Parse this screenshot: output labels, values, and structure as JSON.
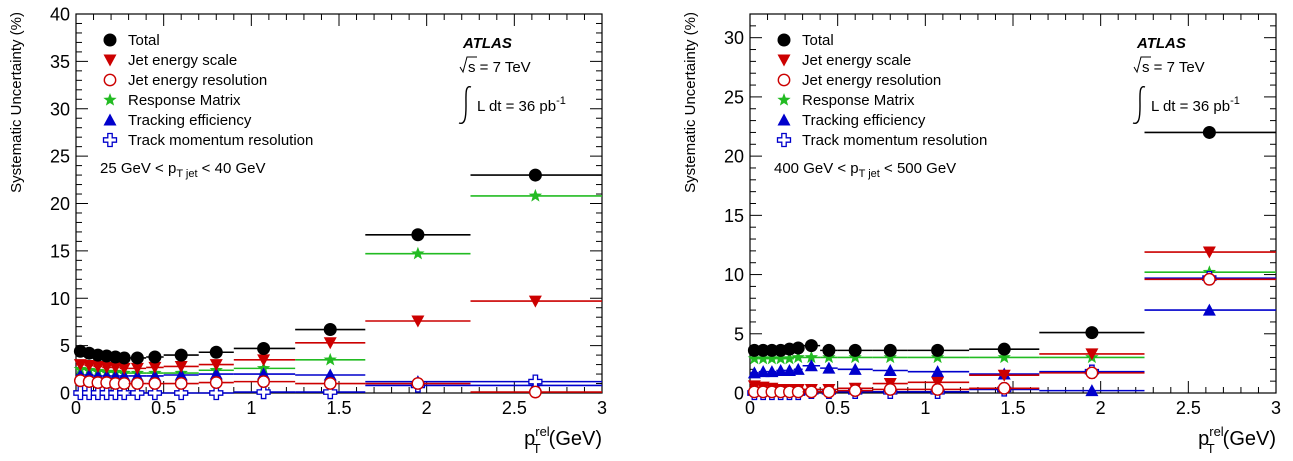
{
  "chart_data": [
    {
      "type": "scatter",
      "ylabel": "Systematic Uncertainty (%)",
      "xlabel": "p",
      "xlabel_sup": "rel",
      "xlabel_sub": "T",
      "xlabel_unit": "(GeV)",
      "xlim": [
        0,
        3
      ],
      "ylim": [
        0,
        40
      ],
      "xticks": [
        "0",
        "0.5",
        "1",
        "1.5",
        "2",
        "2.5",
        "3"
      ],
      "yticks": [
        "0",
        "5",
        "10",
        "15",
        "20",
        "25",
        "30",
        "35",
        "40"
      ],
      "range_label": {
        "prefix": "25 GeV < p",
        "sub": "T jet",
        "suffix": " < 40 GeV"
      },
      "atlas_label": "ATLAS",
      "sqrt_s": {
        "root": "s",
        "rest": " = 7 TeV"
      },
      "lumi": {
        "text": "L dt = 36 pb",
        "sup": "-1"
      },
      "bin_edges": [
        0,
        0.05,
        0.1,
        0.15,
        0.2,
        0.25,
        0.3,
        0.4,
        0.5,
        0.7,
        0.9,
        1.25,
        1.65,
        2.25,
        3.0
      ],
      "centers": [
        0.025,
        0.075,
        0.125,
        0.175,
        0.225,
        0.275,
        0.35,
        0.45,
        0.6,
        0.8,
        1.07,
        1.45,
        1.95,
        2.62
      ],
      "series": [
        {
          "name": "Total",
          "marker": "circle",
          "color": "#000000",
          "values": [
            4.4,
            4.2,
            4.0,
            3.9,
            3.8,
            3.7,
            3.7,
            3.8,
            4.0,
            4.3,
            4.7,
            6.7,
            16.7,
            23.0
          ]
        },
        {
          "name": "Jet energy scale",
          "marker": "tri-down",
          "color": "#cc0000",
          "values": [
            3.0,
            2.9,
            2.8,
            2.7,
            2.7,
            2.6,
            2.6,
            2.7,
            2.8,
            3.0,
            3.5,
            5.3,
            7.6,
            9.7
          ]
        },
        {
          "name": "Jet energy resolution",
          "marker": "circle-open",
          "color": "#cc0000",
          "values": [
            1.3,
            1.2,
            1.1,
            1.1,
            1.0,
            1.0,
            1.0,
            1.0,
            1.0,
            1.1,
            1.2,
            1.0,
            1.0,
            0.1
          ]
        },
        {
          "name": "Response Matrix",
          "marker": "star",
          "color": "#22bb22",
          "values": [
            2.5,
            2.4,
            2.3,
            2.2,
            2.2,
            2.1,
            2.1,
            2.1,
            2.1,
            2.4,
            2.6,
            3.5,
            14.7,
            20.8
          ]
        },
        {
          "name": "Tracking efficiency",
          "marker": "tri-up",
          "color": "#0000cc",
          "values": [
            1.9,
            1.9,
            1.8,
            1.8,
            1.8,
            1.8,
            1.8,
            1.8,
            1.9,
            2.0,
            2.0,
            1.9,
            1.2,
            0.8
          ]
        },
        {
          "name": "Track momentum resolution",
          "marker": "cross-open",
          "color": "#0000cc",
          "values": [
            0.0,
            0.0,
            0.0,
            0.0,
            0.0,
            0.0,
            0.0,
            0.0,
            0.0,
            0.0,
            0.1,
            0.1,
            0.8,
            1.2
          ]
        }
      ]
    },
    {
      "type": "scatter",
      "ylabel": "Systematic Uncertainty (%)",
      "xlabel": "p",
      "xlabel_sup": "rel",
      "xlabel_sub": "T",
      "xlabel_unit": "(GeV)",
      "xlim": [
        0,
        3
      ],
      "ylim": [
        0,
        32
      ],
      "xticks": [
        "0",
        "0.5",
        "1",
        "1.5",
        "2",
        "2.5",
        "3"
      ],
      "yticks": [
        "0",
        "5",
        "10",
        "15",
        "20",
        "25",
        "30"
      ],
      "range_label": {
        "prefix": "400 GeV < p",
        "sub": "T jet",
        "suffix": " < 500 GeV"
      },
      "atlas_label": "ATLAS",
      "sqrt_s": {
        "root": "s",
        "rest": " = 7 TeV"
      },
      "lumi": {
        "text": "L dt = 36 pb",
        "sup": "-1"
      },
      "bin_edges": [
        0,
        0.05,
        0.1,
        0.15,
        0.2,
        0.25,
        0.3,
        0.4,
        0.5,
        0.7,
        0.9,
        1.25,
        1.65,
        2.25,
        3.0
      ],
      "centers": [
        0.025,
        0.075,
        0.125,
        0.175,
        0.225,
        0.275,
        0.35,
        0.45,
        0.6,
        0.8,
        1.07,
        1.45,
        1.95,
        2.62
      ],
      "series": [
        {
          "name": "Total",
          "marker": "circle",
          "color": "#000000",
          "values": [
            3.6,
            3.6,
            3.6,
            3.6,
            3.7,
            3.8,
            4.0,
            3.6,
            3.6,
            3.6,
            3.6,
            3.7,
            5.1,
            22.0
          ]
        },
        {
          "name": "Jet energy scale",
          "marker": "tri-down",
          "color": "#cc0000",
          "values": [
            0.6,
            0.5,
            0.4,
            0.3,
            0.3,
            0.3,
            0.3,
            0.3,
            0.4,
            0.8,
            0.9,
            1.5,
            3.3,
            11.9
          ]
        },
        {
          "name": "Jet energy resolution",
          "marker": "circle-open",
          "color": "#cc0000",
          "values": [
            0.1,
            0.1,
            0.1,
            0.1,
            0.1,
            0.1,
            0.1,
            0.1,
            0.2,
            0.3,
            0.3,
            0.4,
            1.7,
            9.6
          ]
        },
        {
          "name": "Response Matrix",
          "marker": "star",
          "color": "#22bb22",
          "values": [
            2.9,
            2.9,
            2.9,
            2.9,
            2.9,
            3.0,
            3.0,
            3.0,
            3.0,
            3.0,
            3.0,
            3.0,
            3.0,
            10.2
          ]
        },
        {
          "name": "Tracking efficiency",
          "marker": "tri-up",
          "color": "#0000cc",
          "values": [
            1.7,
            1.8,
            1.8,
            1.9,
            1.9,
            2.0,
            2.3,
            2.1,
            2.0,
            1.9,
            1.8,
            1.6,
            0.2,
            7.0
          ]
        },
        {
          "name": "Track momentum resolution",
          "marker": "cross-open",
          "color": "#0000cc",
          "values": [
            0.0,
            0.0,
            0.0,
            0.0,
            0.0,
            0.0,
            0.1,
            0.1,
            0.1,
            0.1,
            0.1,
            0.3,
            1.8,
            9.7
          ]
        }
      ]
    }
  ]
}
